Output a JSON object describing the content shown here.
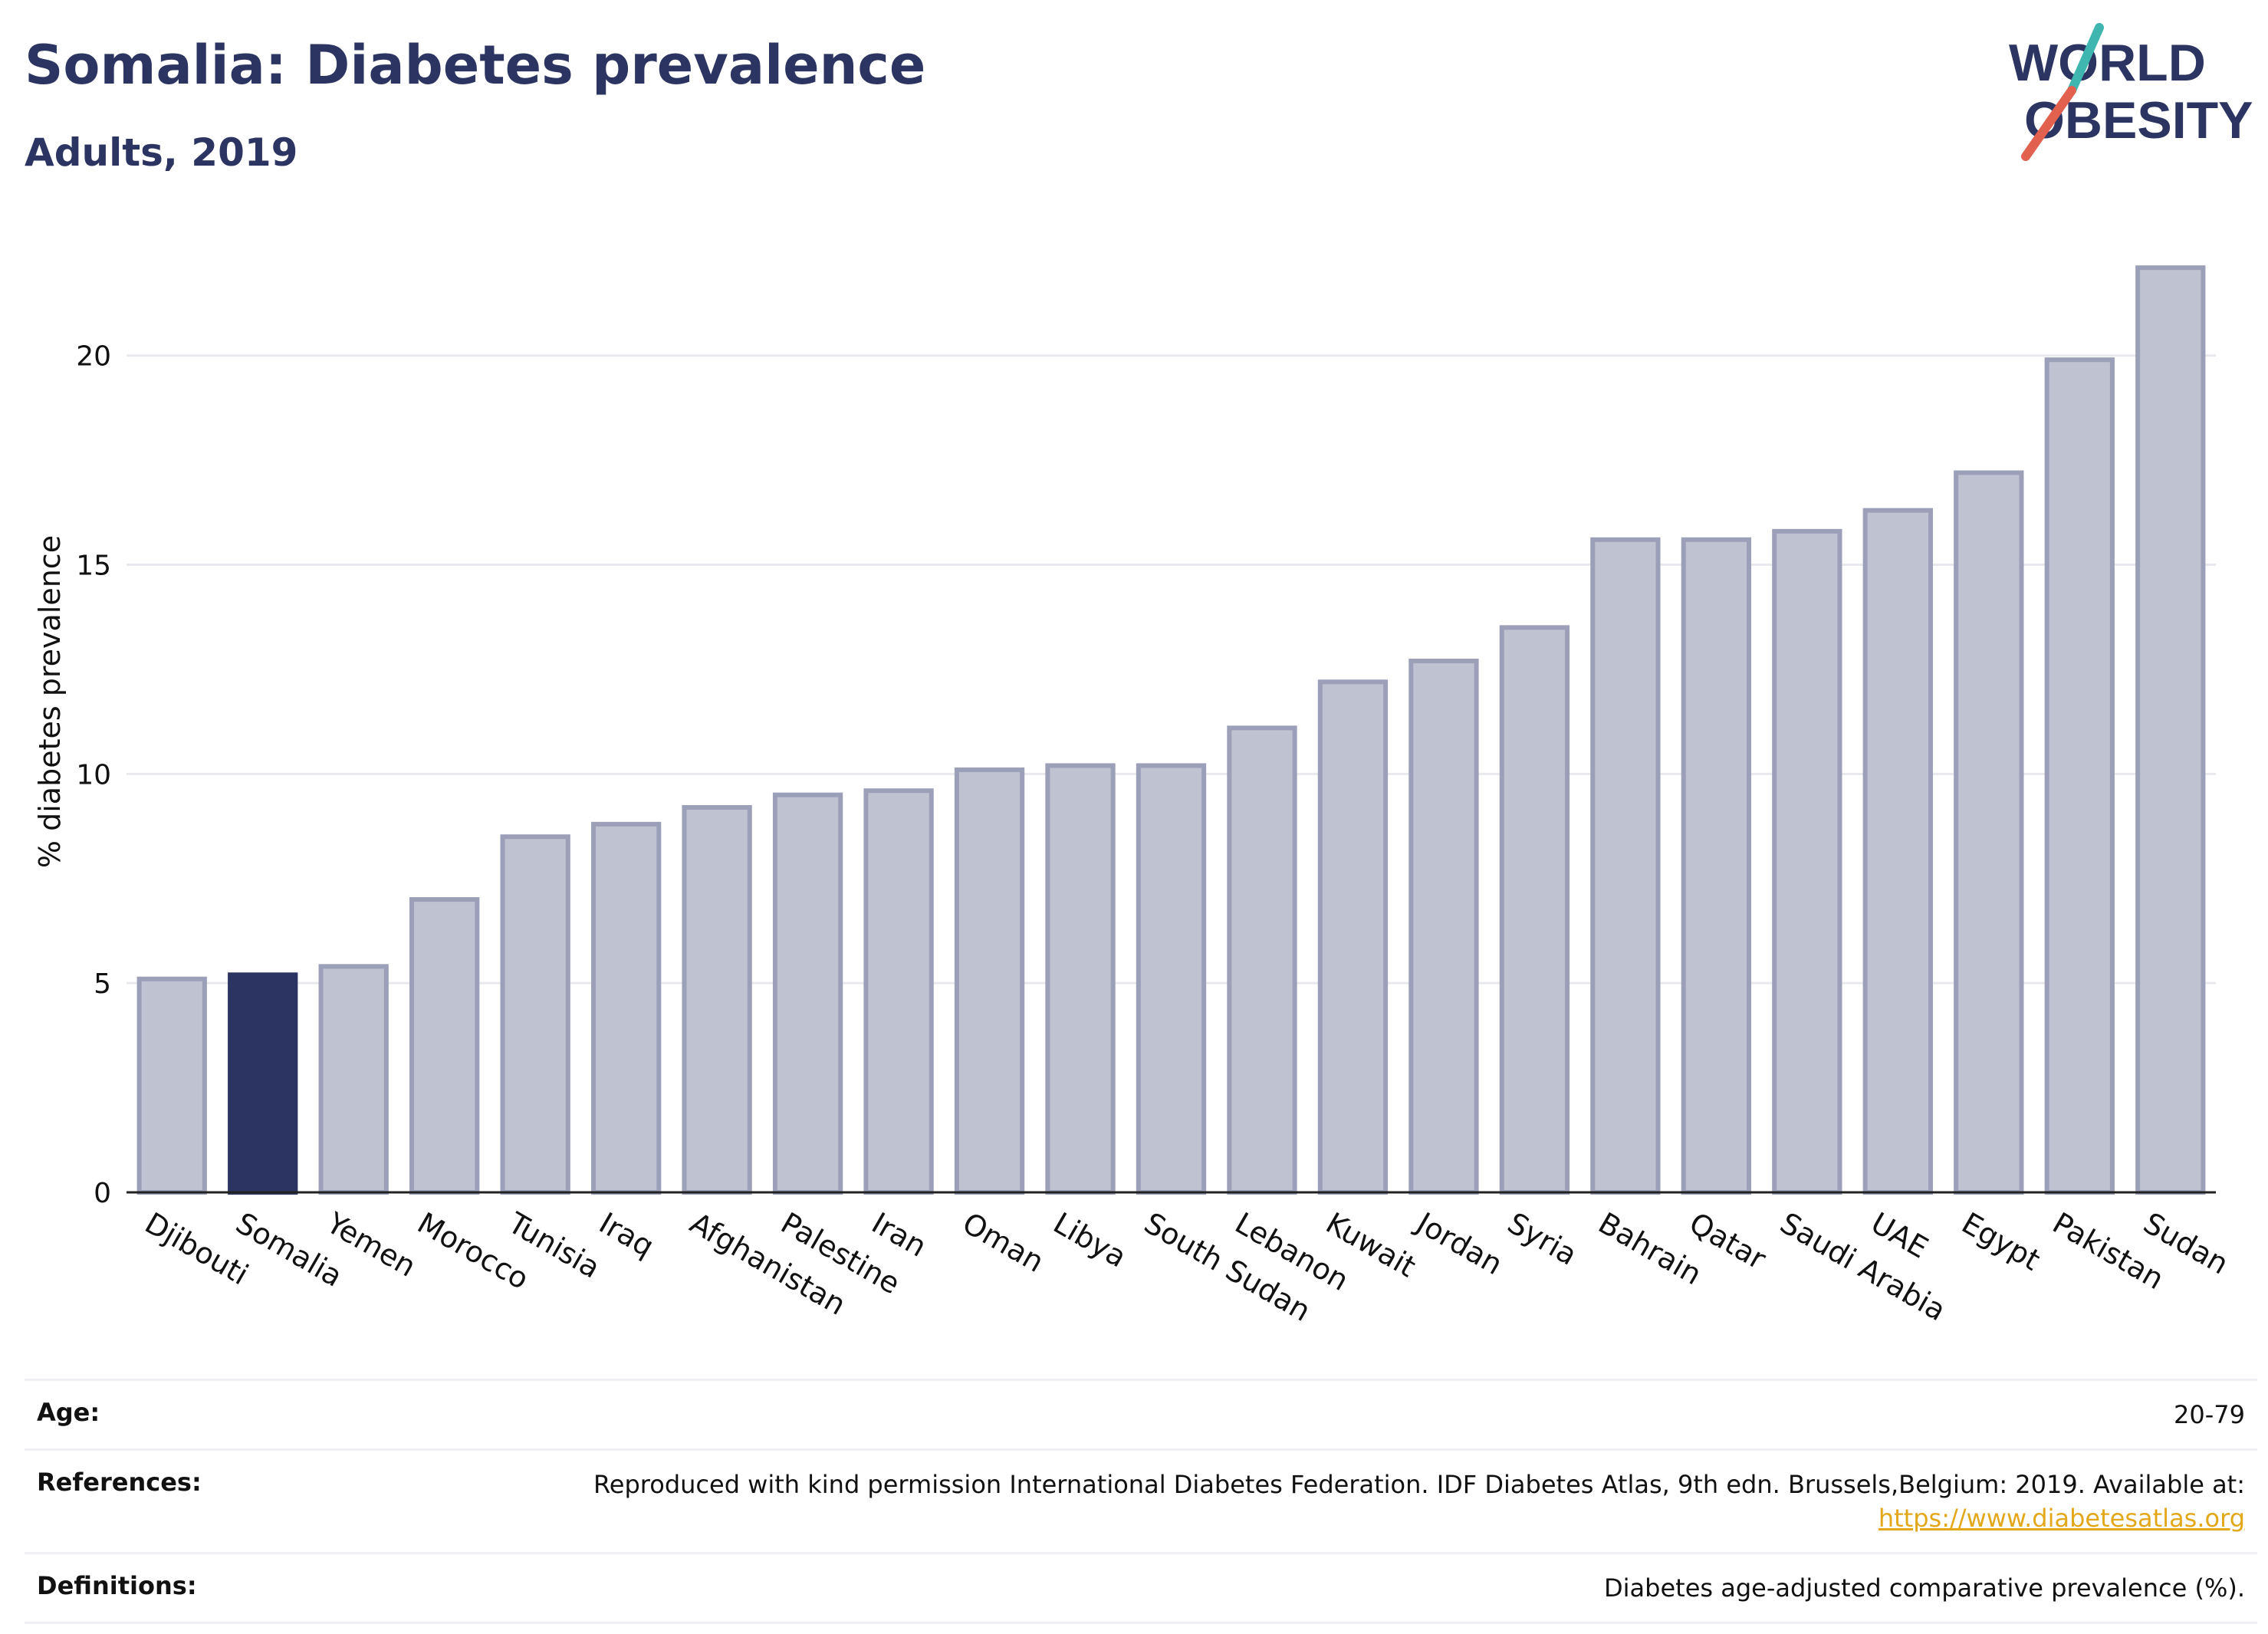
{
  "header": {
    "title": "Somalia: Diabetes prevalence",
    "subtitle": "Adults, 2019"
  },
  "logo": {
    "line1": "WORLD",
    "line2": "OBESITY"
  },
  "chart_data": {
    "type": "bar",
    "categories": [
      "Djibouti",
      "Somalia",
      "Yemen",
      "Morocco",
      "Tunisia",
      "Iraq",
      "Afghanistan",
      "Palestine",
      "Iran",
      "Oman",
      "Libya",
      "South Sudan",
      "Lebanon",
      "Kuwait",
      "Jordan",
      "Syria",
      "Bahrain",
      "Qatar",
      "Saudi Arabia",
      "UAE",
      "Egypt",
      "Pakistan",
      "Sudan"
    ],
    "values": [
      5.1,
      5.2,
      5.4,
      7.0,
      8.5,
      8.8,
      9.2,
      9.5,
      9.6,
      10.1,
      10.2,
      10.2,
      11.1,
      12.2,
      12.7,
      13.5,
      15.6,
      15.6,
      15.8,
      16.3,
      17.2,
      19.9,
      22.1
    ],
    "highlight": "Somalia",
    "ylabel": "% diabetes prevalence",
    "xlabel": "",
    "ylim": [
      0,
      23
    ],
    "yticks": [
      0,
      5,
      10,
      15,
      20
    ],
    "grid": true,
    "colors": {
      "bar": "#bfc2d0",
      "bar_border": "#9b9fb8",
      "highlight": "#2c3561"
    }
  },
  "meta": {
    "age_label": "Age:",
    "age_value": "20-79",
    "references_label": "References:",
    "references_text": "Reproduced with kind permission International Diabetes Federation. IDF Diabetes Atlas, 9th edn. Brussels,Belgium: 2019. Available at:",
    "references_link": "https://www.diabetesatlas.org",
    "definitions_label": "Definitions:",
    "definitions_value": "Diabetes age-adjusted comparative prevalence (%)."
  }
}
